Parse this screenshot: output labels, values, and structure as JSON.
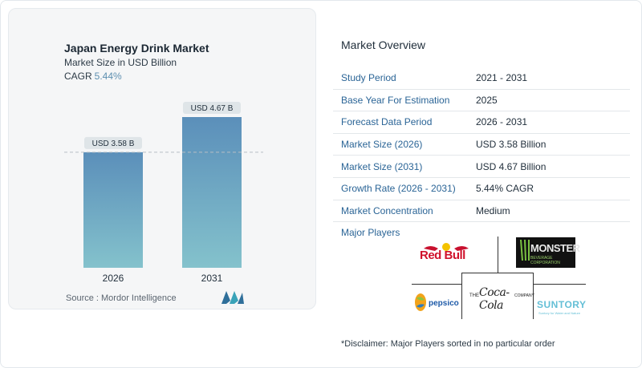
{
  "chart": {
    "title": "Japan Energy Drink Market",
    "subtitle": "Market Size in USD Billion",
    "cagr_label": "CAGR",
    "cagr_value": "5.44%",
    "source": "Source :  Mordor Intelligence"
  },
  "chart_data": {
    "type": "bar",
    "categories": [
      "2026",
      "2031"
    ],
    "values": [
      3.58,
      4.67
    ],
    "data_labels": [
      "USD 3.58 B",
      "USD 4.67 B"
    ],
    "title": "Japan Energy Drink Market",
    "subtitle": "Market Size in USD Billion",
    "ylim": [
      0,
      4.67
    ],
    "grid": false,
    "reference_line": "dashed at 2026 value",
    "colors": {
      "bar_top": "#5b8fba",
      "bar_bottom": "#84c2cc",
      "label_bg": "#dfe5e8"
    }
  },
  "overview": {
    "title": "Market Overview",
    "rows": [
      {
        "key": "Study Period",
        "value": "2021 - 2031"
      },
      {
        "key": "Base Year For Estimation",
        "value": "2025"
      },
      {
        "key": "Forecast Data Period",
        "value": "2026 - 2031"
      },
      {
        "key": "Market Size (2026)",
        "value": "USD 3.58 Billion"
      },
      {
        "key": "Market Size (2031)",
        "value": "USD 4.67 Billion"
      },
      {
        "key": "Growth Rate (2026 - 2031)",
        "value": "5.44% CAGR"
      },
      {
        "key": "Market Concentration",
        "value": "Medium"
      }
    ],
    "players_title": "Major Players",
    "disclaimer": "*Disclaimer: Major Players sorted in no particular order"
  },
  "players": {
    "redbull": "Red Bull",
    "monster": "MONSTER",
    "monster_sub": "BEVERAGE CORPORATION",
    "pepsico": "pepsico",
    "coca_the": "THE",
    "coca_script": "Coca-Cola",
    "coca_company": "COMPANY",
    "suntory": "SUNTORY",
    "suntory_sub": "Suntory for Water and Nature"
  },
  "icons": {
    "brand": "mordor-intelligence-logo",
    "pepsico": "pepsico-leaf-icon",
    "monster": "monster-claw-icon"
  }
}
